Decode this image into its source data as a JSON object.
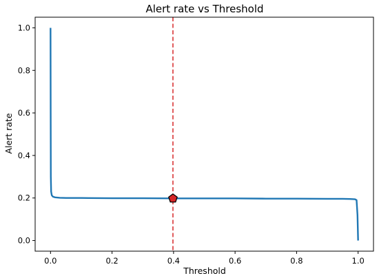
{
  "chart_data": {
    "type": "line",
    "title": "Alert rate vs Threshold",
    "xlabel": "Threshold",
    "ylabel": "Alert rate",
    "xlim": [
      -0.05,
      1.05
    ],
    "ylim": [
      -0.05,
      1.05
    ],
    "xticks": [
      0.0,
      0.2,
      0.4,
      0.6,
      0.8,
      1.0
    ],
    "xtick_labels": [
      "0.0",
      "0.2",
      "0.4",
      "0.6",
      "0.8",
      "1.0"
    ],
    "yticks": [
      0.0,
      0.2,
      0.4,
      0.6,
      0.8,
      1.0
    ],
    "ytick_labels": [
      "0.0",
      "0.2",
      "0.4",
      "0.6",
      "0.8",
      "1.0"
    ],
    "grid": false,
    "series": [
      {
        "color": "#1f77b4",
        "x": [
          0.0,
          0.0005,
          0.001,
          0.002,
          0.004,
          0.008,
          0.015,
          0.03,
          0.05,
          0.1,
          0.2,
          0.3,
          0.4,
          0.5,
          0.6,
          0.7,
          0.8,
          0.9,
          0.95,
          0.98,
          0.99,
          0.995,
          0.998,
          1.0
        ],
        "y": [
          1.0,
          0.6,
          0.3,
          0.23,
          0.213,
          0.206,
          0.203,
          0.201,
          0.2,
          0.2,
          0.199,
          0.199,
          0.198,
          0.198,
          0.198,
          0.197,
          0.197,
          0.196,
          0.196,
          0.195,
          0.194,
          0.19,
          0.12,
          0.0
        ]
      }
    ],
    "threshold_line": {
      "x": 0.398,
      "color": "#d62728",
      "style": "dashed"
    },
    "marker": {
      "x": 0.398,
      "y": 0.198,
      "shape": "pentagon",
      "fill": "#d62728",
      "edge": "#000000"
    }
  }
}
